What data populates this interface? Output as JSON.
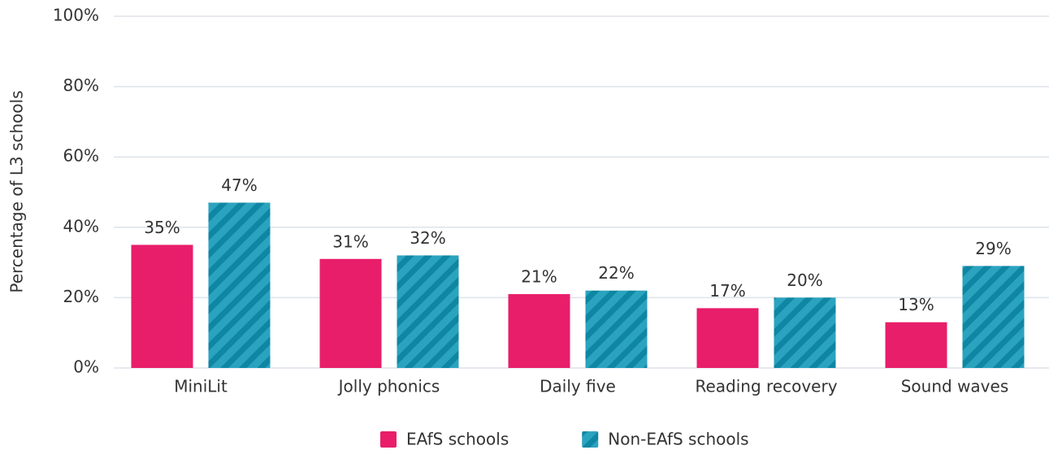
{
  "chart_data": {
    "type": "bar",
    "y_label": "Percentage of L3 schools",
    "categories": [
      "MiniLit",
      "Jolly phonics",
      "Daily five",
      "Reading recovery",
      "Sound waves"
    ],
    "series": [
      {
        "name": "EAfS schools",
        "color": "#e81e6b",
        "values": [
          35,
          31,
          21,
          17,
          13
        ],
        "value_labels": [
          "35%",
          "31%",
          "21%",
          "17%",
          "13%"
        ]
      },
      {
        "name": "Non-EAfS schools",
        "color": "#2aa3bf",
        "pattern": "hatch",
        "values": [
          47,
          32,
          22,
          20,
          29
        ],
        "value_labels": [
          "47%",
          "32%",
          "22%",
          "20%",
          "29%"
        ]
      }
    ],
    "ylim": [
      0,
      100
    ],
    "yticks": [
      {
        "value": 0,
        "label": "0%"
      },
      {
        "value": 20,
        "label": "20%"
      },
      {
        "value": 40,
        "label": "40%"
      },
      {
        "value": 60,
        "label": "60%"
      },
      {
        "value": 80,
        "label": "80%"
      },
      {
        "value": 100,
        "label": "100%"
      }
    ],
    "grid": true,
    "legend": "bottom"
  }
}
